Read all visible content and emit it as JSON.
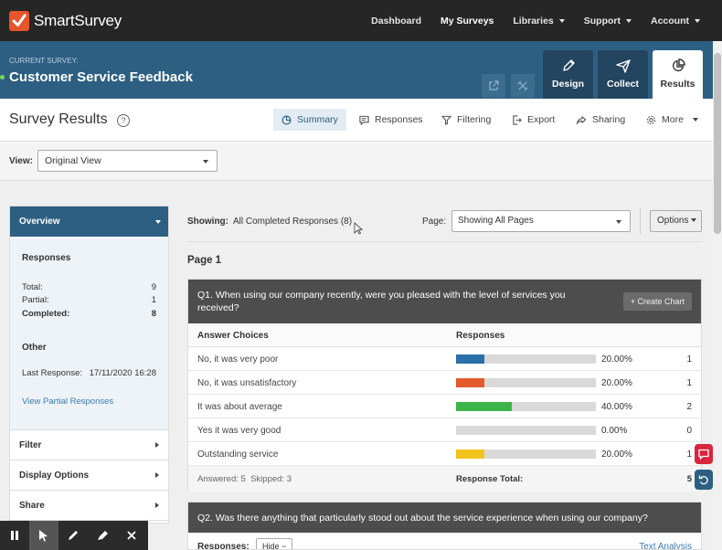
{
  "app": {
    "name": "SmartSurvey"
  },
  "nav": {
    "items": [
      {
        "label": "Dashboard",
        "dropdown": false,
        "active": false
      },
      {
        "label": "My Surveys",
        "dropdown": false,
        "active": true
      },
      {
        "label": "Libraries",
        "dropdown": true,
        "active": false
      },
      {
        "label": "Support",
        "dropdown": true,
        "active": false
      },
      {
        "label": "Account",
        "dropdown": true,
        "active": false
      }
    ]
  },
  "survey": {
    "current_label": "CURRENT SURVEY:",
    "title": "Customer Service Feedback"
  },
  "survey_tabs": [
    {
      "label": "Design",
      "icon": "pencil-icon"
    },
    {
      "label": "Collect",
      "icon": "paper-plane-icon"
    },
    {
      "label": "Results",
      "icon": "pie-chart-icon",
      "active": true
    }
  ],
  "results": {
    "title": "Survey Results",
    "help": "?",
    "tabs": [
      {
        "label": "Summary",
        "icon": "summary-icon",
        "active": true
      },
      {
        "label": "Responses",
        "icon": "speech-bubble-icon"
      },
      {
        "label": "Filtering",
        "icon": "filter-icon"
      },
      {
        "label": "Export",
        "icon": "export-icon"
      },
      {
        "label": "Sharing",
        "icon": "share-icon"
      },
      {
        "label": "More",
        "icon": "gear-icon",
        "dropdown": true
      }
    ]
  },
  "view": {
    "label": "View:",
    "selected": "Original View"
  },
  "sidebar": {
    "header": "Overview",
    "responses_title": "Responses",
    "stats": [
      {
        "label": "Total:",
        "value": "9",
        "bold": false
      },
      {
        "label": "Partial:",
        "value": "1",
        "bold": false
      },
      {
        "label": "Completed:",
        "value": "8",
        "bold": true
      }
    ],
    "other_title": "Other",
    "last_response_label": "Last Response:",
    "last_response_value": "17/11/2020 16:28",
    "partial_link": "View Partial Responses",
    "sections": [
      "Filter",
      "Display Options",
      "Share"
    ]
  },
  "main": {
    "showing_label": "Showing:",
    "showing_value": "All Completed Responses (8)",
    "page_label": "Page:",
    "page_selected": "Showing All Pages",
    "options_label": "Options",
    "page_title": "Page 1"
  },
  "q1": {
    "title": "Q1. When using our company recently, were you pleased with the level of services you received?",
    "create_chart": "+ Create Chart",
    "col_choices": "Answer Choices",
    "col_responses": "Responses",
    "answers": [
      {
        "label": "No, it was very poor",
        "percent": "20.00%",
        "count": "1",
        "fraction": 0.2,
        "color": "#2a6fa8"
      },
      {
        "label": "No, it was unsatisfactory",
        "percent": "20.00%",
        "count": "1",
        "fraction": 0.2,
        "color": "#e35a2d"
      },
      {
        "label": "It was about average",
        "percent": "40.00%",
        "count": "2",
        "fraction": 0.4,
        "color": "#3bb54a"
      },
      {
        "label": "Yes it was very good",
        "percent": "0.00%",
        "count": "0",
        "fraction": 0.0,
        "color": "#d9d9d9"
      },
      {
        "label": "Outstanding service",
        "percent": "20.00%",
        "count": "1",
        "fraction": 0.2,
        "color": "#f2c31b"
      }
    ],
    "answered": "Answered: 5",
    "skipped": "Skipped: 3",
    "total_label": "Response Total:",
    "total_value": "5"
  },
  "q2": {
    "title": "Q2. Was there anything that particularly stood out about the service experience when using our company?",
    "responses_label": "Responses:",
    "hide_label": "Hide",
    "text_analysis": "Text Analysis"
  },
  "colors": {
    "nav_bg": "#262626",
    "banner_bg": "#2d5f82",
    "brand_orange": "#e8542b",
    "chat_red": "#d9263c",
    "undo_blue": "#2d5f82"
  }
}
